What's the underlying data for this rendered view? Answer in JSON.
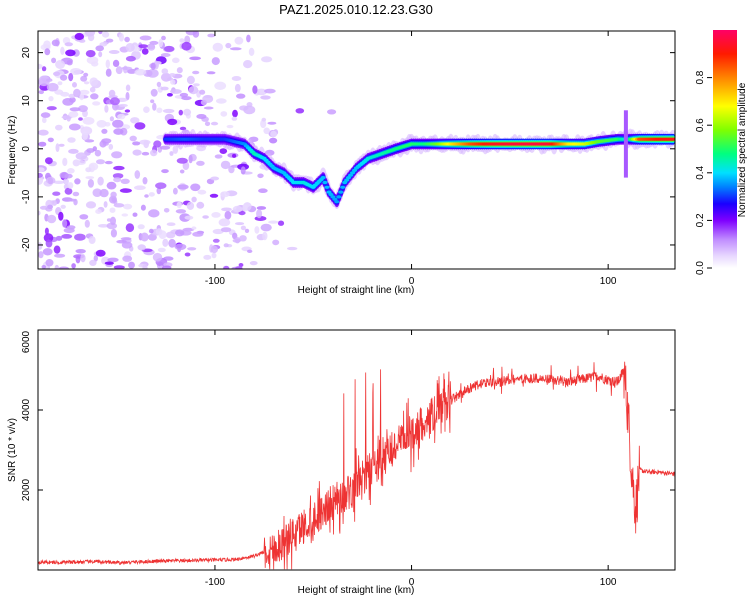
{
  "figure": {
    "title": "PAZ1.2025.010.12.23.G30"
  },
  "chart_data": [
    {
      "type": "heatmap",
      "title": "PAZ1.2025.010.12.23.G30",
      "xlabel": "Height of straight line (km)",
      "ylabel": "Frequency (Hz)",
      "xlim": [
        -190,
        134
      ],
      "ylim": [
        -25,
        24.5
      ],
      "xticks": [
        -100,
        0,
        100
      ],
      "yticks": [
        -20,
        -10,
        0,
        10,
        20
      ],
      "grid": false,
      "colorbar": {
        "label": "Normalized spectral amplitude",
        "range": [
          0,
          1
        ],
        "ticks": [
          0.0,
          0.2,
          0.4,
          0.6,
          0.8
        ],
        "tick_labels": [
          "0.0",
          "0.2",
          "0.4",
          "0.6",
          "0.8"
        ],
        "colormap": [
          "#ffffff",
          "#cc99ff",
          "#7f00ff",
          "#0000ff",
          "#00ccff",
          "#00ff66",
          "#ffff00",
          "#ff8000",
          "#ff0000",
          "#ff0066"
        ]
      },
      "ridge": [
        {
          "x": -125,
          "y": 2,
          "a": 0.3
        },
        {
          "x": -115,
          "y": 2,
          "a": 0.32
        },
        {
          "x": -105,
          "y": 2,
          "a": 0.3
        },
        {
          "x": -95,
          "y": 2,
          "a": 0.3
        },
        {
          "x": -85,
          "y": 1,
          "a": 0.35
        },
        {
          "x": -80,
          "y": -1,
          "a": 0.45
        },
        {
          "x": -75,
          "y": -2,
          "a": 0.4
        },
        {
          "x": -70,
          "y": -4,
          "a": 0.38
        },
        {
          "x": -65,
          "y": -5,
          "a": 0.38
        },
        {
          "x": -60,
          "y": -7,
          "a": 0.4
        },
        {
          "x": -55,
          "y": -7,
          "a": 0.42
        },
        {
          "x": -50,
          "y": -8,
          "a": 0.4
        },
        {
          "x": -45,
          "y": -6,
          "a": 0.38
        },
        {
          "x": -42,
          "y": -9,
          "a": 0.38
        },
        {
          "x": -38,
          "y": -11,
          "a": 0.36
        },
        {
          "x": -34,
          "y": -7,
          "a": 0.38
        },
        {
          "x": -28,
          "y": -4,
          "a": 0.38
        },
        {
          "x": -22,
          "y": -2,
          "a": 0.42
        },
        {
          "x": -15,
          "y": -1,
          "a": 0.45
        },
        {
          "x": -8,
          "y": 0,
          "a": 0.48
        },
        {
          "x": 0,
          "y": 1,
          "a": 0.5
        },
        {
          "x": 6,
          "y": 1,
          "a": 0.48
        },
        {
          "x": 12,
          "y": 1,
          "a": 0.55
        },
        {
          "x": 20,
          "y": 1,
          "a": 0.7
        },
        {
          "x": 30,
          "y": 1,
          "a": 0.85
        },
        {
          "x": 40,
          "y": 1,
          "a": 0.92
        },
        {
          "x": 50,
          "y": 1,
          "a": 0.95
        },
        {
          "x": 60,
          "y": 1,
          "a": 0.96
        },
        {
          "x": 70,
          "y": 1,
          "a": 0.95
        },
        {
          "x": 80,
          "y": 1,
          "a": 0.7
        },
        {
          "x": 88,
          "y": 1,
          "a": 0.65
        },
        {
          "x": 95,
          "y": 1.5,
          "a": 0.55
        },
        {
          "x": 105,
          "y": 2,
          "a": 0.5
        },
        {
          "x": 110,
          "y": 2,
          "a": 0.4
        },
        {
          "x": 116,
          "y": 2,
          "a": 0.85
        },
        {
          "x": 125,
          "y": 2,
          "a": 0.9
        },
        {
          "x": 134,
          "y": 2,
          "a": 0.92
        }
      ]
    },
    {
      "type": "line",
      "xlabel": "Height of straight line (km)",
      "ylabel": "SNR (10 * v/v)",
      "xlim": [
        -190,
        134
      ],
      "ylim": [
        0,
        6000
      ],
      "xticks": [
        -100,
        0,
        100
      ],
      "yticks": [
        2000,
        4000,
        6000
      ],
      "grid": false,
      "color": "#ee3333",
      "series": [
        {
          "x": [
            -190,
            -180,
            -170,
            -160,
            -150,
            -140,
            -130,
            -120,
            -110,
            -100,
            -90,
            -80,
            -75,
            -70,
            -65,
            -60,
            -55,
            -50,
            -45,
            -40,
            -35,
            -30,
            -27,
            -25,
            -20,
            -15,
            -10,
            -5,
            0,
            5,
            10,
            15,
            20,
            25,
            30,
            35,
            40,
            45,
            50,
            60,
            70,
            80,
            85,
            90,
            95,
            100,
            105,
            108,
            110,
            112,
            114,
            116,
            120,
            125,
            134
          ],
          "y": [
            200,
            190,
            200,
            210,
            180,
            200,
            220,
            230,
            240,
            250,
            260,
            350,
            450,
            550,
            700,
            900,
            1100,
            1300,
            1500,
            1700,
            1850,
            2000,
            2200,
            2300,
            2550,
            2750,
            3000,
            3200,
            3450,
            3650,
            3850,
            4050,
            4250,
            4400,
            4550,
            4650,
            4700,
            4700,
            4750,
            4800,
            4750,
            4700,
            4750,
            4800,
            4850,
            4750,
            4700,
            5000,
            4000,
            2500,
            1500,
            2500,
            2450,
            2450,
            2400
          ]
        }
      ]
    }
  ]
}
